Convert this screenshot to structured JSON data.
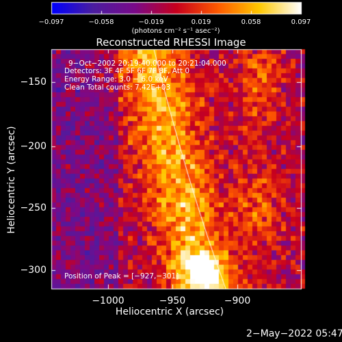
{
  "colorbar": {
    "ticks": [
      "−0.097",
      "−0.058",
      "−0.019",
      "0.019",
      "0.058",
      "0.097"
    ],
    "unit": "(photons cm⁻² s⁻¹ asec⁻²)",
    "colors": [
      "#0000ff",
      "#4b1ea0",
      "#7a0a8a",
      "#c8001e",
      "#ff5a00",
      "#ffc800",
      "#ffffff"
    ]
  },
  "title": "Reconstructed RHESSI Image",
  "info": {
    "time": "9−Oct−2002 20:19:40.000 to 20:21:04.000",
    "detectors": "Detectors: 3F 4F 5F 6F 7F 8F, Att 0",
    "energy": "Energy Range: 3.0 − 6.0 keV",
    "method": "Clean     Total counts: 7.42E+03"
  },
  "peak": "Position of Peak = [−927,−301]",
  "axes": {
    "xlabel": "Heliocentric X (arcsec)",
    "ylabel": "Heliocentric Y (arcsec)",
    "xticks": [
      "−1000",
      "−950",
      "−900"
    ],
    "yticks": [
      "−150",
      "−200",
      "−250",
      "−300"
    ]
  },
  "footer_timestamp": "2−May−2022 05:47"
}
